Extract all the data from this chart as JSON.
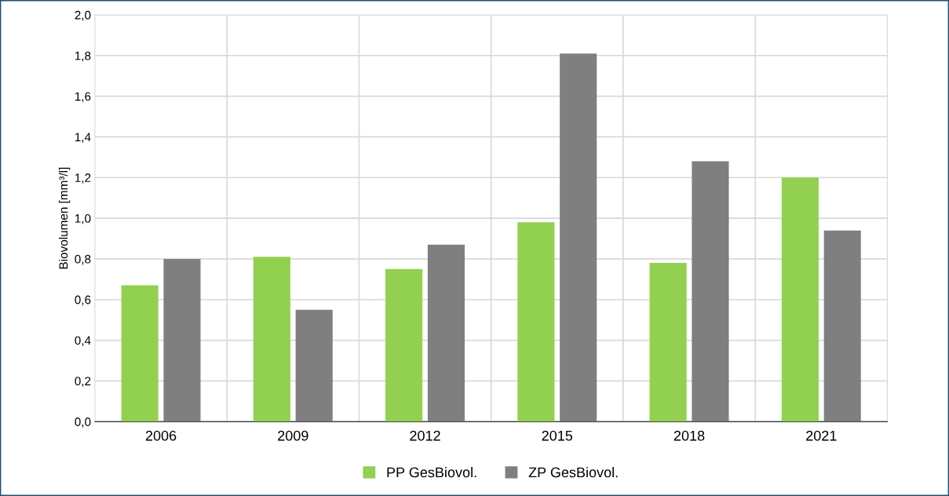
{
  "chart_data": {
    "type": "bar",
    "ylabel": "Biovolumen [mm³/l]",
    "categories": [
      "2006",
      "2009",
      "2012",
      "2015",
      "2018",
      "2021"
    ],
    "series": [
      {
        "name": "PP GesBiovol.",
        "color": "#92d050",
        "values": [
          0.67,
          0.81,
          0.75,
          0.98,
          0.78,
          1.2
        ]
      },
      {
        "name": "ZP GesBiovol.",
        "color": "#7f7f7f",
        "values": [
          0.8,
          0.55,
          0.87,
          1.81,
          1.28,
          0.94
        ]
      }
    ],
    "ylim": [
      0,
      2.0
    ],
    "yticks": [
      {
        "value": 0,
        "label": "0,0"
      },
      {
        "value": 0.2,
        "label": "0,2"
      },
      {
        "value": 0.4,
        "label": "0,4"
      },
      {
        "value": 0.6,
        "label": "0,6"
      },
      {
        "value": 0.8,
        "label": "0,8"
      },
      {
        "value": 1.0,
        "label": "1,0"
      },
      {
        "value": 1.2,
        "label": "1,2"
      },
      {
        "value": 1.4,
        "label": "1,4"
      },
      {
        "value": 1.6,
        "label": "1,6"
      },
      {
        "value": 1.8,
        "label": "1,8"
      },
      {
        "value": 2.0,
        "label": "2,0"
      }
    ],
    "grid": true,
    "legend": "bottom"
  }
}
